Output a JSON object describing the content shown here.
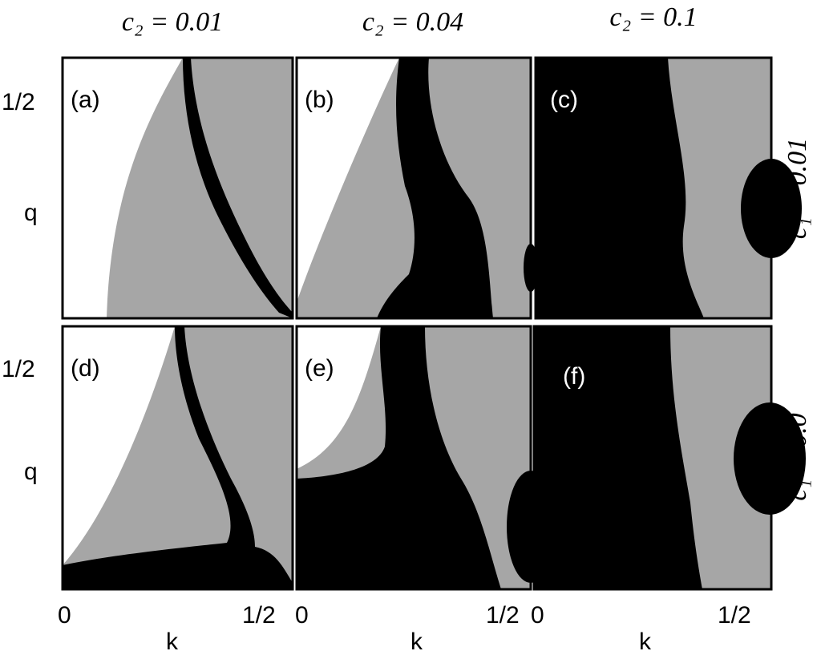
{
  "figure": {
    "columns": [
      {
        "title": "c₂ = 0.01",
        "xticks": [
          "0",
          "1/2"
        ],
        "xlabel": "k"
      },
      {
        "title": "c₂ = 0.04",
        "xticks": [
          "0",
          "1/2"
        ],
        "xlabel": "k"
      },
      {
        "title": "c₂ = 0.1",
        "xticks": [
          "0",
          "1/2"
        ],
        "xlabel": "k"
      }
    ],
    "rows": [
      {
        "label": "c₁ = 0.01",
        "ytick": "1/2",
        "ylabel": "q"
      },
      {
        "label": "c₁ = 0.0",
        "ytick": "1/2",
        "ylabel": "q"
      }
    ],
    "panels": [
      {
        "label": "(a)"
      },
      {
        "label": "(b)"
      },
      {
        "label": "(c)"
      },
      {
        "label": "(d)"
      },
      {
        "label": "(e)"
      },
      {
        "label": "(f)"
      }
    ]
  }
}
